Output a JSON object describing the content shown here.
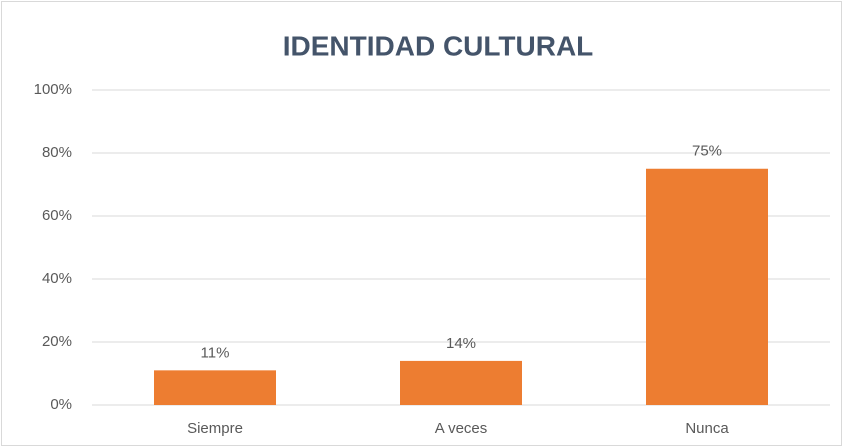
{
  "chart_data": {
    "type": "bar",
    "title": "IDENTIDAD CULTURAL",
    "categories": [
      "Siempre",
      "A veces",
      "Nunca"
    ],
    "values": [
      11,
      14,
      75
    ],
    "value_labels": [
      "11%",
      "14%",
      "75%"
    ],
    "color": "#ed7d31",
    "ylim": [
      0,
      100
    ],
    "yticks": [
      {
        "value": 0,
        "label": "0%"
      },
      {
        "value": 20,
        "label": "20%"
      },
      {
        "value": 40,
        "label": "40%"
      },
      {
        "value": 60,
        "label": "60%"
      },
      {
        "value": 80,
        "label": "80%"
      },
      {
        "value": 100,
        "label": "100%"
      }
    ],
    "grid": true
  }
}
